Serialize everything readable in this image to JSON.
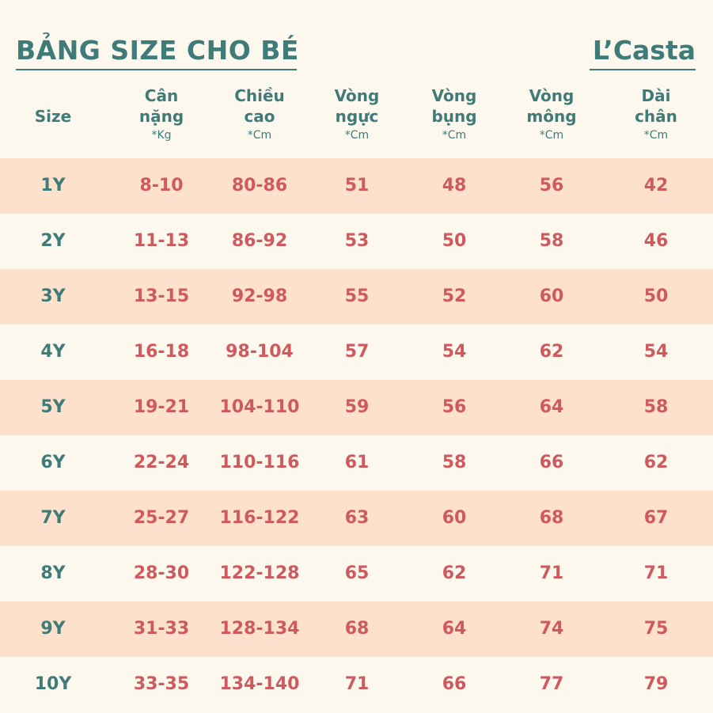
{
  "title": "BẢNG SIZE CHO BÉ",
  "brand": "L’Casta",
  "columns": [
    {
      "name": "Size",
      "unit": ""
    },
    {
      "name": "Cân\nnặng",
      "unit": "*Kg"
    },
    {
      "name": "Chiều\ncao",
      "unit": "*Cm"
    },
    {
      "name": "Vòng\nngực",
      "unit": "*Cm"
    },
    {
      "name": "Vòng\nbụng",
      "unit": "*Cm"
    },
    {
      "name": "Vòng\nmông",
      "unit": "*Cm"
    },
    {
      "name": "Dài\nchân",
      "unit": "*Cm"
    }
  ],
  "rows": [
    [
      "1Y",
      "8-10",
      "80-86",
      "51",
      "48",
      "56",
      "42"
    ],
    [
      "2Y",
      "11-13",
      "86-92",
      "53",
      "50",
      "58",
      "46"
    ],
    [
      "3Y",
      "13-15",
      "92-98",
      "55",
      "52",
      "60",
      "50"
    ],
    [
      "4Y",
      "16-18",
      "98-104",
      "57",
      "54",
      "62",
      "54"
    ],
    [
      "5Y",
      "19-21",
      "104-110",
      "59",
      "56",
      "64",
      "58"
    ],
    [
      "6Y",
      "22-24",
      "110-116",
      "61",
      "58",
      "66",
      "62"
    ],
    [
      "7Y",
      "25-27",
      "116-122",
      "63",
      "60",
      "68",
      "67"
    ],
    [
      "8Y",
      "28-30",
      "122-128",
      "65",
      "62",
      "71",
      "71"
    ],
    [
      "9Y",
      "31-33",
      "128-134",
      "68",
      "64",
      "74",
      "75"
    ],
    [
      "10Y",
      "33-35",
      "134-140",
      "71",
      "66",
      "77",
      "79"
    ]
  ],
  "colors": {
    "teal": "#3f7b78",
    "coral": "#cf5a5e",
    "stripe": "#fde1cc",
    "background": "#fdf8ee"
  }
}
